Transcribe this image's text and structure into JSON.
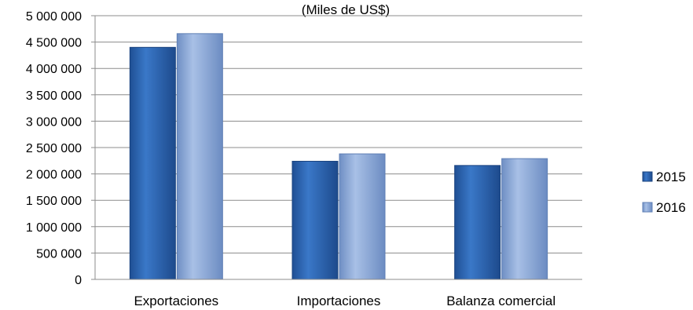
{
  "chart_data": {
    "type": "bar",
    "subtitle": "(Miles de US$)",
    "categories": [
      "Exportaciones",
      "Importaciones",
      "Balanza comercial"
    ],
    "series": [
      {
        "name": "2015",
        "values": [
          4400000,
          2240000,
          2160000
        ],
        "color": "#2e68b8"
      },
      {
        "name": "2016",
        "values": [
          4660000,
          2380000,
          2290000
        ],
        "color": "#94b0dc"
      }
    ],
    "ylim": [
      0,
      5000000
    ],
    "yticks": [
      "0",
      "500 000",
      "1 000 000",
      "1 500 000",
      "2 000 000",
      "2 500 000",
      "3 000 000",
      "3 500 000",
      "4 000 000",
      "4 500 000",
      "5 000 000"
    ],
    "ytick_values": [
      0,
      500000,
      1000000,
      1500000,
      2000000,
      2500000,
      3000000,
      3500000,
      4000000,
      4500000,
      5000000
    ],
    "grid": true,
    "legend_position": "right"
  }
}
